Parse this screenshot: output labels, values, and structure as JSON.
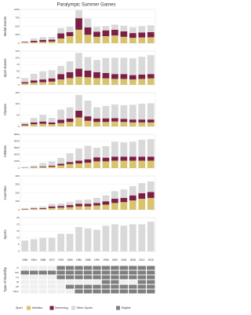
{
  "chart_data": {
    "type": "small-multiples",
    "title": "Paralympic Summer Games",
    "categories": [
      "1960",
      "1964",
      "1968",
      "1972",
      "1976",
      "1980",
      "1984",
      "1988",
      "1992",
      "1996",
      "2000",
      "2004",
      "2008",
      "2012",
      "2016"
    ],
    "panels": [
      {
        "type": "bar",
        "ylabel": "Medal Events",
        "ylim": [
          0,
          1000
        ],
        "yticks": [
          0,
          250,
          500,
          750,
          1000
        ],
        "grid": true,
        "series": [
          {
            "name": "Athletics",
            "color": "#d8c46e",
            "values": [
              25,
              30,
              40,
              50,
              140,
              210,
              400,
              250,
              190,
              210,
              230,
              190,
              160,
              170,
              177
            ]
          },
          {
            "name": "Swimming",
            "color": "#7b1f47",
            "values": [
              15,
              40,
              60,
              55,
              150,
              120,
              340,
              220,
              150,
              170,
              170,
              160,
              140,
              148,
              152
            ]
          },
          {
            "name": "Other Sports",
            "color": "#d9d9d9",
            "values": [
              17,
              74,
              81,
              82,
              157,
              159,
              235,
              262,
              147,
              128,
              151,
              169,
              172,
              185,
              199
            ]
          }
        ]
      },
      {
        "type": "bar",
        "ylabel": "Sport Events",
        "ylim": [
          0,
          125
        ],
        "yticks": [
          0,
          25,
          50,
          75,
          100,
          125
        ],
        "grid": true,
        "series": [
          {
            "name": "Athletics",
            "color": "#d8c46e",
            "values": [
              5,
              8,
              10,
              12,
              20,
              25,
              30,
              28,
              25,
              24,
              22,
              22,
              20,
              22,
              24
            ]
          },
          {
            "name": "Swimming",
            "color": "#7b1f47",
            "values": [
              5,
              8,
              10,
              12,
              20,
              22,
              30,
              25,
              22,
              20,
              18,
              18,
              16,
              16,
              16
            ]
          },
          {
            "name": "Other Sports",
            "color": "#d9d9d9",
            "values": [
              15,
              25,
              30,
              30,
              30,
              40,
              58,
              50,
              45,
              55,
              60,
              60,
              62,
              66,
              70
            ]
          }
        ]
      },
      {
        "type": "bar",
        "ylabel": "Classes",
        "ylim": [
          0,
          150
        ],
        "yticks": [
          0,
          50,
          100,
          150
        ],
        "grid": true,
        "series": [
          {
            "name": "Athletics",
            "color": "#d8c46e",
            "values": [
              5,
              10,
              12,
              10,
              15,
              20,
              40,
              25,
              20,
              20,
              22,
              20,
              18,
              18,
              18
            ]
          },
          {
            "name": "Swimming",
            "color": "#7b1f47",
            "values": [
              5,
              8,
              10,
              8,
              15,
              15,
              30,
              20,
              15,
              16,
              15,
              14,
              13,
              13,
              13
            ]
          },
          {
            "name": "Other Sports",
            "color": "#d9d9d9",
            "values": [
              8,
              20,
              30,
              20,
              45,
              50,
              70,
              70,
              50,
              55,
              60,
              60,
              65,
              70,
              72
            ]
          }
        ]
      },
      {
        "type": "bar",
        "ylabel": "Athletes",
        "ylim": [
          0,
          5000
        ],
        "yticks": [
          0,
          1000,
          2000,
          3000,
          4000,
          5000
        ],
        "grid": true,
        "series": [
          {
            "name": "Athletics",
            "color": "#d8c46e",
            "values": [
              50,
              100,
              150,
              200,
              400,
              600,
              700,
              800,
              1000,
              1000,
              1100,
              1100,
              1100,
              1100,
              1100
            ]
          },
          {
            "name": "Swimming",
            "color": "#7b1f47",
            "values": [
              30,
              60,
              100,
              150,
              250,
              300,
              400,
              500,
              600,
              550,
              600,
              600,
              600,
              600,
              600
            ]
          },
          {
            "name": "Other Sports",
            "color": "#d9d9d9",
            "values": [
              120,
              215,
              500,
              650,
              850,
              1300,
              1800,
              2000,
              1400,
              1700,
              2200,
              2100,
              2200,
              2500,
              2600
            ]
          }
        ]
      },
      {
        "type": "bar",
        "ylabel": "Countries",
        "ylim": [
          0,
          400
        ],
        "yticks": [
          0,
          100,
          200,
          300,
          400
        ],
        "grid": true,
        "series": [
          {
            "name": "Athletics",
            "color": "#d8c46e",
            "values": [
              5,
              8,
              10,
              20,
              25,
              30,
              40,
              40,
              50,
              60,
              80,
              90,
              110,
              130,
              140
            ]
          },
          {
            "name": "Swimming",
            "color": "#7b1f47",
            "values": [
              5,
              8,
              10,
              20,
              20,
              25,
              30,
              30,
              30,
              40,
              50,
              50,
              60,
              65,
              70
            ]
          },
          {
            "name": "Other Sports",
            "color": "#d9d9d9",
            "values": [
              10,
              15,
              20,
              30,
              30,
              35,
              45,
              50,
              60,
              70,
              90,
              100,
              110,
              120,
              125
            ]
          }
        ]
      },
      {
        "type": "bar",
        "ylabel": "Sports",
        "ylim": [
          0,
          25
        ],
        "yticks": [
          0,
          5,
          10,
          15,
          20,
          25
        ],
        "grid": true,
        "series": [
          {
            "name": "Other Sports",
            "color": "#d9d9d9",
            "values": [
              8,
              9,
              10,
              10,
              13,
              13,
              18,
              17,
              16,
              19,
              20,
              19,
              20,
              20,
              22
            ]
          }
        ]
      }
    ],
    "disability": {
      "type": "grid",
      "label": "Type of Disability",
      "color": "#7f7f7f",
      "empty_color": "#efefef",
      "rows": [
        {
          "name": "VI",
          "values": [
            0,
            0,
            0,
            0,
            1,
            1,
            1,
            1,
            1,
            1,
            1,
            1,
            1,
            1,
            1
          ]
        },
        {
          "name": "SCI",
          "values": [
            1,
            1,
            1,
            1,
            1,
            1,
            1,
            1,
            1,
            1,
            1,
            1,
            1,
            1,
            1
          ]
        },
        {
          "name": "LA",
          "values": [
            0,
            0,
            0,
            0,
            1,
            1,
            1,
            1,
            1,
            1,
            1,
            1,
            1,
            1,
            1
          ]
        },
        {
          "name": "ID",
          "values": [
            0,
            0,
            0,
            0,
            0,
            0,
            0,
            0,
            0,
            1,
            1,
            0,
            0,
            1,
            1
          ]
        },
        {
          "name": "CP",
          "values": [
            0,
            0,
            0,
            0,
            0,
            1,
            1,
            1,
            1,
            1,
            1,
            1,
            1,
            1,
            1
          ]
        },
        {
          "name": "Other",
          "values": [
            0,
            0,
            0,
            0,
            0,
            0,
            1,
            1,
            1,
            1,
            1,
            1,
            1,
            1,
            1
          ]
        }
      ]
    },
    "legend": {
      "title": "Sport",
      "items": [
        "Athletics",
        "Swimming",
        "Other Sports"
      ],
      "colors": [
        "#d8c46e",
        "#7b1f47",
        "#d9d9d9"
      ],
      "eligible": "Eligible",
      "eligible_color": "#7f7f7f"
    }
  }
}
